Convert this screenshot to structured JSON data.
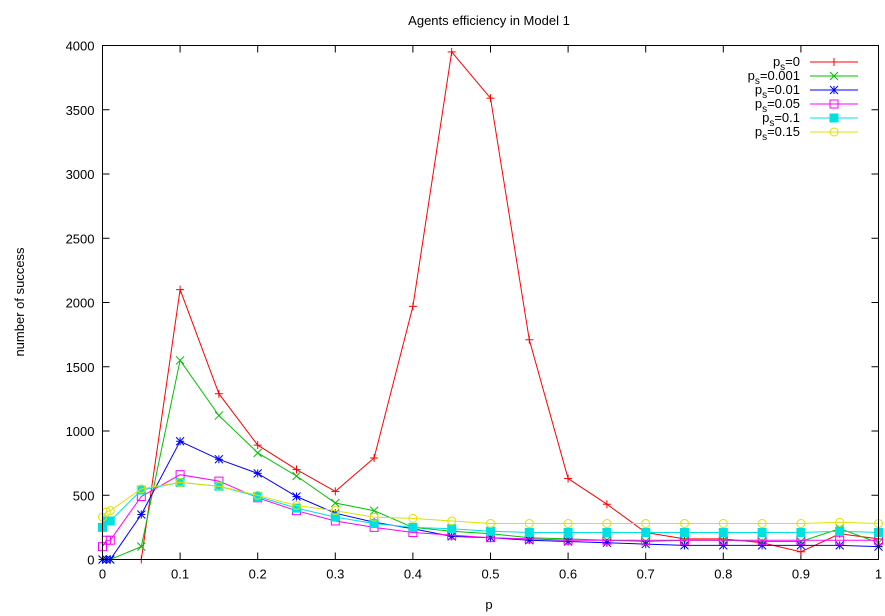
{
  "chart_data": {
    "type": "line",
    "title": "Agents efficiency in Model 1",
    "xlabel": "p",
    "ylabel": "number of success",
    "xlim": [
      0,
      1
    ],
    "ylim": [
      0,
      4000
    ],
    "xticks": [
      "0",
      "0.1",
      "0.2",
      "0.3",
      "0.4",
      "0.5",
      "0.6",
      "0.7",
      "0.8",
      "0.9",
      "1"
    ],
    "yticks": [
      "0",
      "500",
      "1000",
      "1500",
      "2000",
      "2500",
      "3000",
      "3500",
      "4000"
    ],
    "grid": false,
    "legend_position": "top-right",
    "series": [
      {
        "name": "ps=0",
        "legend_base": "p",
        "legend_sub": "s",
        "legend_rest": "=0",
        "color": "#ff0000",
        "marker": "plus",
        "x": [
          0,
          0.005,
          0.01,
          0.05,
          0.1,
          0.15,
          0.2,
          0.25,
          0.3,
          0.35,
          0.4,
          0.45,
          0.5,
          0.55,
          0.6,
          0.65,
          0.7,
          0.75,
          0.8,
          0.85,
          0.9,
          0.95,
          1
        ],
        "y": [
          0,
          0,
          0,
          0,
          2100,
          1290,
          890,
          700,
          530,
          790,
          1970,
          3950,
          3590,
          1710,
          630,
          430,
          210,
          160,
          160,
          130,
          60,
          200,
          160
        ]
      },
      {
        "name": "ps=0.001",
        "legend_base": "p",
        "legend_sub": "s",
        "legend_rest": "=0.001",
        "color": "#00c000",
        "marker": "x",
        "x": [
          0,
          0.005,
          0.01,
          0.05,
          0.1,
          0.15,
          0.2,
          0.25,
          0.3,
          0.35,
          0.4,
          0.45,
          0.5,
          0.55,
          0.6,
          0.65,
          0.7,
          0.75,
          0.8,
          0.85,
          0.9,
          0.95,
          1
        ],
        "y": [
          0,
          0,
          0,
          100,
          1550,
          1120,
          830,
          650,
          440,
          380,
          250,
          220,
          200,
          170,
          160,
          150,
          140,
          150,
          150,
          140,
          140,
          240,
          130
        ]
      },
      {
        "name": "ps=0.01",
        "legend_base": "p",
        "legend_sub": "s",
        "legend_rest": "=0.01",
        "color": "#0000ff",
        "marker": "star",
        "x": [
          0,
          0.005,
          0.01,
          0.05,
          0.1,
          0.15,
          0.2,
          0.25,
          0.3,
          0.35,
          0.4,
          0.45,
          0.5,
          0.55,
          0.6,
          0.65,
          0.7,
          0.75,
          0.8,
          0.85,
          0.9,
          0.95,
          1
        ],
        "y": [
          0,
          0,
          0,
          350,
          920,
          780,
          670,
          490,
          360,
          290,
          240,
          180,
          170,
          150,
          140,
          130,
          120,
          110,
          110,
          110,
          110,
          110,
          100
        ]
      },
      {
        "name": "ps=0.05",
        "legend_base": "p",
        "legend_sub": "s",
        "legend_rest": "=0.05",
        "color": "#ff00ff",
        "marker": "square",
        "x": [
          0,
          0.005,
          0.01,
          0.05,
          0.1,
          0.15,
          0.2,
          0.25,
          0.3,
          0.35,
          0.4,
          0.45,
          0.5,
          0.55,
          0.6,
          0.65,
          0.7,
          0.75,
          0.8,
          0.85,
          0.9,
          0.95,
          1
        ],
        "y": [
          100,
          150,
          150,
          490,
          660,
          610,
          480,
          380,
          300,
          250,
          210,
          190,
          170,
          160,
          150,
          150,
          150,
          150,
          150,
          150,
          150,
          150,
          150
        ]
      },
      {
        "name": "ps=0.1",
        "legend_base": "p",
        "legend_sub": "s",
        "legend_rest": "=0.1",
        "color": "#00e0e0",
        "marker": "filled-square",
        "x": [
          0,
          0.005,
          0.01,
          0.05,
          0.1,
          0.15,
          0.2,
          0.25,
          0.3,
          0.35,
          0.4,
          0.45,
          0.5,
          0.55,
          0.6,
          0.65,
          0.7,
          0.75,
          0.8,
          0.85,
          0.9,
          0.95,
          1
        ],
        "y": [
          250,
          300,
          300,
          540,
          600,
          570,
          490,
          400,
          330,
          280,
          250,
          240,
          220,
          210,
          210,
          210,
          210,
          210,
          210,
          210,
          210,
          220,
          210
        ]
      },
      {
        "name": "ps=0.15",
        "legend_base": "p",
        "legend_sub": "s",
        "legend_rest": "=0.15",
        "color": "#e0e000",
        "marker": "circle",
        "x": [
          0,
          0.005,
          0.01,
          0.05,
          0.1,
          0.15,
          0.2,
          0.25,
          0.3,
          0.35,
          0.4,
          0.45,
          0.5,
          0.55,
          0.6,
          0.65,
          0.7,
          0.75,
          0.8,
          0.85,
          0.9,
          0.95,
          1
        ],
        "y": [
          330,
          370,
          380,
          550,
          600,
          570,
          500,
          420,
          380,
          330,
          320,
          300,
          280,
          280,
          280,
          280,
          280,
          280,
          280,
          280,
          280,
          290,
          280
        ]
      }
    ]
  }
}
